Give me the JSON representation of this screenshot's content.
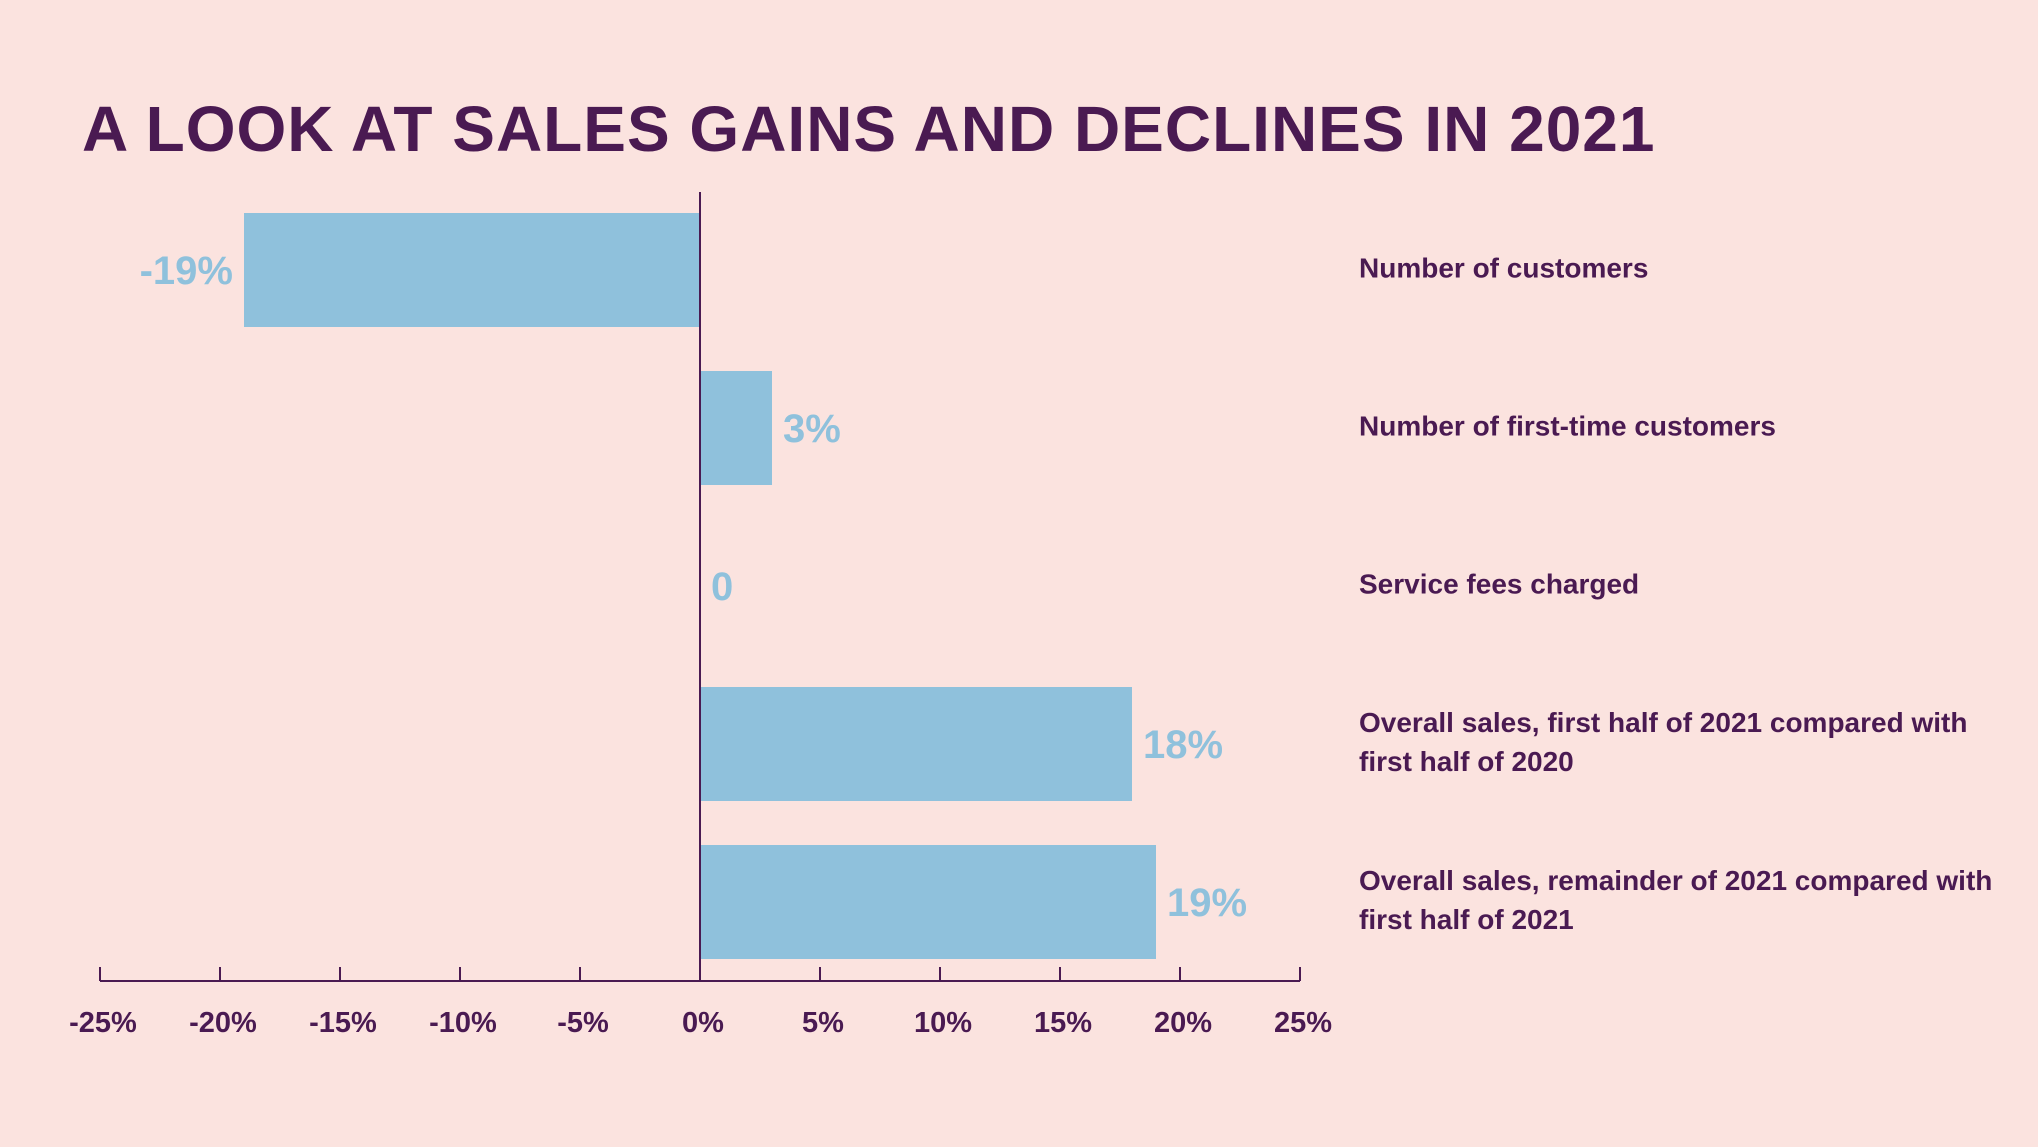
{
  "chart_data": {
    "type": "bar",
    "orientation": "horizontal",
    "title": "A LOOK AT SALES GAINS AND DECLINES IN 2021",
    "xlabel": "",
    "ylabel": "",
    "xlim": [
      -25,
      25
    ],
    "tick_values": [
      -25,
      -20,
      -15,
      -10,
      -5,
      0,
      5,
      10,
      15,
      20,
      25
    ],
    "tick_labels": [
      "-25%",
      "-20%",
      "-15%",
      "-10%",
      "-5%",
      "0%",
      "5%",
      "10%",
      "15%",
      "20%",
      "25%"
    ],
    "grid": false,
    "legend": "none",
    "categories": [
      "Number of customers",
      "Number of first-time customers",
      "Service fees charged",
      "Overall sales, first half of 2021 compared with first half of 2020",
      "Overall sales, remainder of 2021 compared with first half of 2021"
    ],
    "values": [
      -19,
      3,
      0,
      18,
      19
    ],
    "data_labels": [
      "-19%",
      "3%",
      "0",
      "18%",
      "19%"
    ],
    "colors": {
      "background": "#fbe3df",
      "bar": "#8fc1dc",
      "text": "#4a1a52",
      "axis": "#4a1a52"
    }
  }
}
